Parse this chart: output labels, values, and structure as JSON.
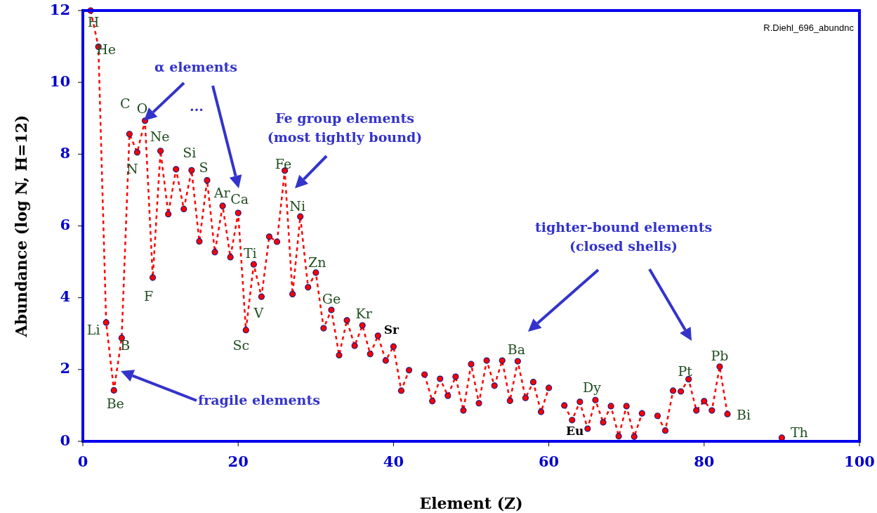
{
  "chart_data": {
    "type": "line",
    "xlabel": "Element (Z)",
    "ylabel": "Abundance (log N, H=12)",
    "xlim": [
      0,
      100
    ],
    "xticks": [
      0,
      20,
      40,
      60,
      80,
      100
    ],
    "ylim": [
      0,
      12
    ],
    "yticks": [
      0,
      2,
      4,
      6,
      8,
      10,
      12
    ],
    "grid": false,
    "marker": "circle",
    "line_style": "dashed",
    "x": [
      1,
      2,
      3,
      4,
      5,
      6,
      7,
      8,
      9,
      10,
      11,
      12,
      13,
      14,
      15,
      16,
      17,
      18,
      19,
      20,
      21,
      22,
      23,
      24,
      25,
      26,
      27,
      28,
      29,
      30,
      31,
      32,
      33,
      34,
      35,
      36,
      37,
      38,
      39,
      40,
      41,
      42,
      43,
      44,
      45,
      46,
      47,
      48,
      49,
      50,
      51,
      52,
      53,
      54,
      55,
      56,
      57,
      58,
      59,
      60,
      61,
      62,
      63,
      64,
      65,
      66,
      67,
      68,
      69,
      70,
      71,
      72,
      73,
      74,
      75,
      76,
      77,
      78,
      79,
      80,
      81,
      82,
      83,
      84,
      85,
      86,
      87,
      88,
      89,
      90
    ],
    "series": [
      {
        "color": "#ff0000",
        "values": [
          12.0,
          10.99,
          3.31,
          1.42,
          2.88,
          8.56,
          8.05,
          8.93,
          4.56,
          8.09,
          6.33,
          7.58,
          6.47,
          7.55,
          5.57,
          7.27,
          5.27,
          6.56,
          5.13,
          6.36,
          3.1,
          4.93,
          4.03,
          5.7,
          5.56,
          7.54,
          4.1,
          6.26,
          4.29,
          4.7,
          3.15,
          3.66,
          2.4,
          3.37,
          2.66,
          3.23,
          2.43,
          2.94,
          2.25,
          2.64,
          1.41,
          1.98,
          null,
          1.86,
          1.12,
          1.74,
          1.27,
          1.8,
          0.86,
          2.15,
          1.06,
          2.25,
          1.55,
          2.25,
          1.13,
          2.23,
          1.21,
          1.65,
          0.82,
          1.49,
          null,
          1.0,
          0.59,
          1.1,
          0.35,
          1.15,
          0.53,
          0.98,
          0.14,
          0.98,
          0.13,
          0.78,
          null,
          0.71,
          0.3,
          1.41,
          1.39,
          1.73,
          0.86,
          1.12,
          0.86,
          2.08,
          0.76,
          null,
          null,
          null,
          null,
          null,
          null,
          0.1
        ]
      }
    ],
    "annotations": [
      {
        "text": "H",
        "x": 1,
        "y": 12.0
      },
      {
        "text": "He",
        "x": 2,
        "y": 10.99
      },
      {
        "text": "Li",
        "x": 3,
        "y": 3.31
      },
      {
        "text": "Be",
        "x": 4,
        "y": 1.42
      },
      {
        "text": "B",
        "x": 5,
        "y": 2.88
      },
      {
        "text": "C",
        "x": 6,
        "y": 8.56
      },
      {
        "text": "N",
        "x": 7,
        "y": 8.05
      },
      {
        "text": "O",
        "x": 8,
        "y": 8.93
      },
      {
        "text": "F",
        "x": 9,
        "y": 4.56
      },
      {
        "text": "Ne",
        "x": 10,
        "y": 8.09
      },
      {
        "text": "Si",
        "x": 14,
        "y": 7.55
      },
      {
        "text": "S",
        "x": 16,
        "y": 7.27
      },
      {
        "text": "Ar",
        "x": 18,
        "y": 6.56
      },
      {
        "text": "Ca",
        "x": 20,
        "y": 6.36
      },
      {
        "text": "Sc",
        "x": 21,
        "y": 3.1
      },
      {
        "text": "Ti",
        "x": 22,
        "y": 4.93
      },
      {
        "text": "V",
        "x": 23,
        "y": 4.03
      },
      {
        "text": "Fe",
        "x": 26,
        "y": 7.54
      },
      {
        "text": "Ni",
        "x": 28,
        "y": 6.26
      },
      {
        "text": "Zn",
        "x": 30,
        "y": 4.7
      },
      {
        "text": "Ge",
        "x": 32,
        "y": 3.66
      },
      {
        "text": "Kr",
        "x": 36,
        "y": 3.23
      },
      {
        "text": "Sr",
        "x": 38,
        "y": 2.94
      },
      {
        "text": "Ba",
        "x": 56,
        "y": 2.23
      },
      {
        "text": "Eu",
        "x": 63,
        "y": 0.59
      },
      {
        "text": "Dy",
        "x": 66,
        "y": 1.15
      },
      {
        "text": "Pt",
        "x": 78,
        "y": 1.73
      },
      {
        "text": "Pb",
        "x": 82,
        "y": 2.08
      },
      {
        "text": "Bi",
        "x": 83,
        "y": 0.76
      },
      {
        "text": "Th",
        "x": 90,
        "y": 0.1
      },
      "α elements",
      "...",
      "Fe group elements\n(most tightly bound)",
      "tighter-bound elements\n(closed shells)",
      "fragile elements",
      "R.Diehl_696_abundnc"
    ]
  }
}
